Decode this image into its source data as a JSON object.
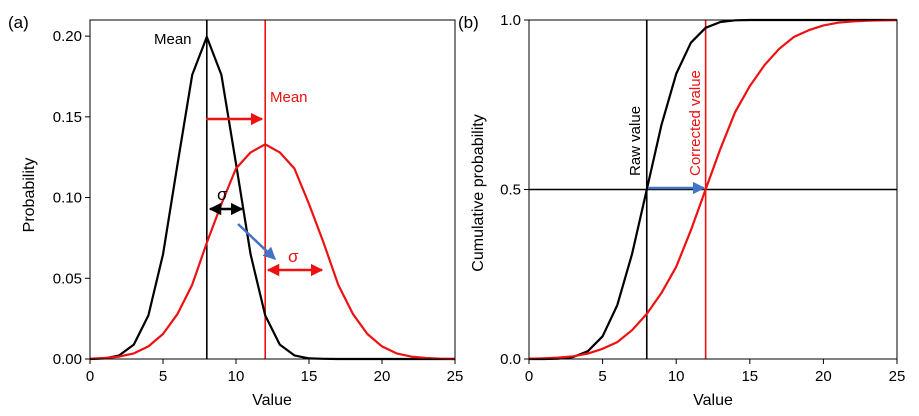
{
  "chart_data": [
    {
      "panel": "(a)",
      "type": "line",
      "xlabel": "Value",
      "ylabel": "Probability",
      "xlim": [
        0,
        25
      ],
      "ylim": [
        0,
        0.21
      ],
      "xticks": [
        0,
        5,
        10,
        15,
        20,
        25
      ],
      "yticks": [
        0.0,
        0.05,
        0.1,
        0.15,
        0.2
      ],
      "ytick_labels": [
        "0.00",
        "0.05",
        "0.10",
        "0.15",
        "0.20"
      ],
      "series": [
        {
          "color": "#000000",
          "x": [
            0,
            1,
            2,
            3,
            4,
            5,
            6,
            7,
            8,
            9,
            10,
            11,
            12,
            13,
            14,
            15,
            16,
            17,
            18,
            19,
            20,
            21,
            22,
            23,
            24,
            25
          ],
          "y": [
            0.0,
            0.0004,
            0.0022,
            0.0089,
            0.027,
            0.0648,
            0.121,
            0.176,
            0.1995,
            0.176,
            0.121,
            0.0648,
            0.027,
            0.0089,
            0.0022,
            0.0004,
            0.0001,
            0.0,
            0.0,
            0.0,
            0.0,
            0.0,
            0.0,
            0.0,
            0.0,
            0.0
          ]
        },
        {
          "color": "#ee1111",
          "x": [
            0,
            1,
            2,
            3,
            4,
            5,
            6,
            7,
            8,
            9,
            10,
            11,
            12,
            13,
            14,
            15,
            16,
            17,
            18,
            19,
            20,
            21,
            22,
            23,
            24,
            25
          ],
          "y": [
            0.0002,
            0.0006,
            0.0015,
            0.0035,
            0.0078,
            0.0155,
            0.028,
            0.046,
            0.072,
            0.096,
            0.118,
            0.128,
            0.133,
            0.128,
            0.118,
            0.096,
            0.072,
            0.046,
            0.028,
            0.0155,
            0.0078,
            0.0035,
            0.0015,
            0.0006,
            0.0002,
            0.0
          ]
        }
      ],
      "vlines": [
        {
          "x": 8,
          "color": "#000000"
        },
        {
          "x": 12,
          "color": "#ee1111"
        }
      ],
      "annotations": [
        {
          "text": "Mean",
          "color": "#000000"
        },
        {
          "text": "Mean",
          "color": "#ee1111"
        },
        {
          "text": "σ",
          "color": "#000000"
        },
        {
          "text": "σ",
          "color": "#ee1111"
        }
      ]
    },
    {
      "panel": "(b)",
      "type": "line",
      "xlabel": "Value",
      "ylabel": "Cumulative probability",
      "xlim": [
        0,
        25
      ],
      "ylim": [
        0,
        1.0
      ],
      "xticks": [
        0,
        5,
        10,
        15,
        20,
        25
      ],
      "yticks": [
        0.0,
        0.5,
        1.0
      ],
      "ytick_labels": [
        "0.0",
        "0.5",
        "1.0"
      ],
      "series": [
        {
          "color": "#000000",
          "x": [
            0,
            1,
            2,
            3,
            4,
            5,
            6,
            7,
            8,
            9,
            10,
            11,
            12,
            13,
            14,
            15,
            16,
            17,
            18,
            19,
            20,
            21,
            22,
            23,
            24,
            25
          ],
          "y": [
            0.0,
            0.0,
            0.001,
            0.006,
            0.023,
            0.067,
            0.159,
            0.309,
            0.5,
            0.691,
            0.841,
            0.933,
            0.977,
            0.994,
            0.999,
            1.0,
            1.0,
            1.0,
            1.0,
            1.0,
            1.0,
            1.0,
            1.0,
            1.0,
            1.0,
            1.0
          ]
        },
        {
          "color": "#ee1111",
          "x": [
            0,
            1,
            2,
            3,
            4,
            5,
            6,
            7,
            8,
            9,
            10,
            11,
            12,
            13,
            14,
            15,
            16,
            17,
            18,
            19,
            20,
            21,
            22,
            23,
            24,
            25
          ],
          "y": [
            0.001,
            0.002,
            0.004,
            0.008,
            0.016,
            0.03,
            0.05,
            0.085,
            0.133,
            0.195,
            0.272,
            0.38,
            0.5,
            0.62,
            0.728,
            0.805,
            0.867,
            0.915,
            0.95,
            0.97,
            0.984,
            0.992,
            0.996,
            0.998,
            0.999,
            1.0
          ]
        }
      ],
      "vlines": [
        {
          "x": 8,
          "color": "#000000"
        },
        {
          "x": 12,
          "color": "#ee1111"
        }
      ],
      "hline": {
        "y": 0.5,
        "color": "#000000"
      },
      "annotations": [
        {
          "text": "Raw value",
          "color": "#000000"
        },
        {
          "text": "Corrected value",
          "color": "#ee1111"
        }
      ]
    }
  ],
  "arrow_color": "#4472c4"
}
